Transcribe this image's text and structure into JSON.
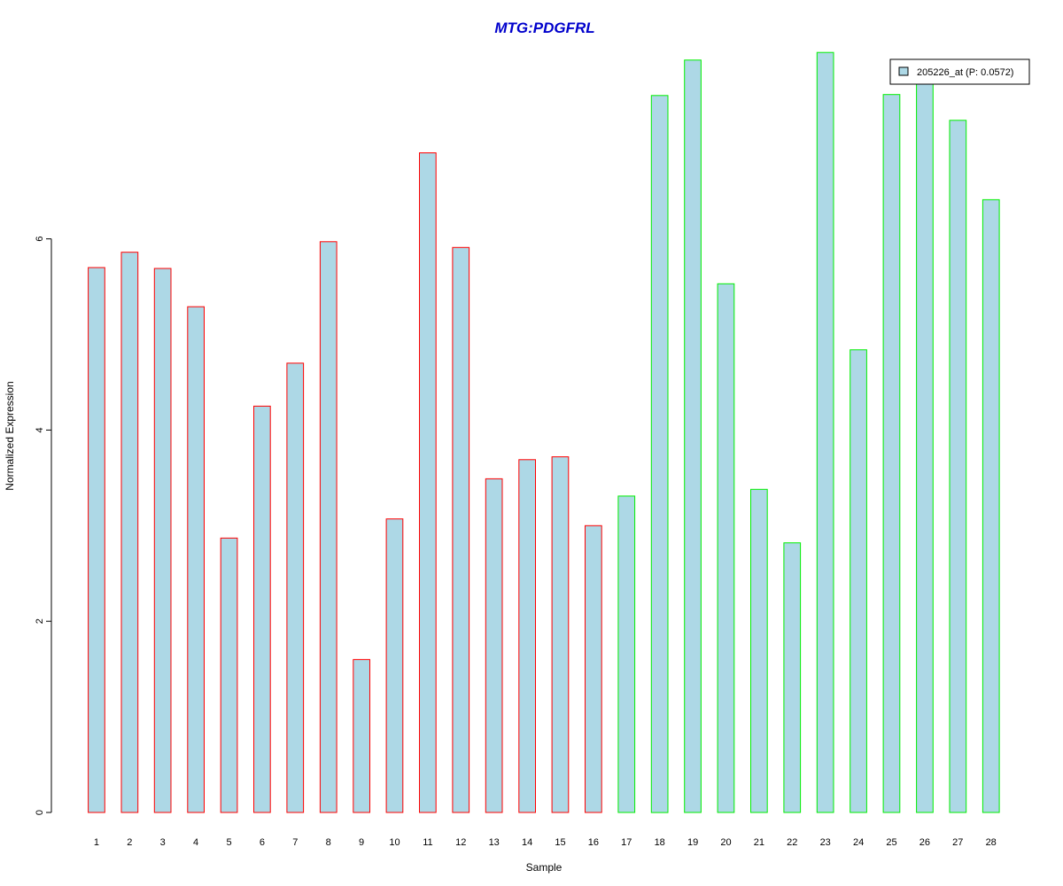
{
  "chart_data": {
    "type": "bar",
    "title": "MTG:PDGFRL",
    "xlabel": "Sample",
    "ylabel": "Normalized Expression",
    "categories": [
      "1",
      "2",
      "3",
      "4",
      "5",
      "6",
      "7",
      "8",
      "9",
      "10",
      "11",
      "12",
      "13",
      "14",
      "15",
      "16",
      "17",
      "18",
      "19",
      "20",
      "21",
      "22",
      "23",
      "24",
      "25",
      "26",
      "27",
      "28"
    ],
    "series": [
      {
        "name": "205226_at (P: 0.0572)",
        "values": [
          5.7,
          5.86,
          5.69,
          5.29,
          2.87,
          4.25,
          4.7,
          5.97,
          1.6,
          3.07,
          6.9,
          5.91,
          3.49,
          3.69,
          3.72,
          3.0,
          3.31,
          7.5,
          7.87,
          5.53,
          3.38,
          2.82,
          7.95,
          4.84,
          7.51,
          7.62,
          7.24,
          6.41
        ]
      }
    ],
    "group_outline_colors": [
      "#ff0000",
      "#ff0000",
      "#ff0000",
      "#ff0000",
      "#ff0000",
      "#ff0000",
      "#ff0000",
      "#ff0000",
      "#ff0000",
      "#ff0000",
      "#ff0000",
      "#ff0000",
      "#ff0000",
      "#ff0000",
      "#ff0000",
      "#ff0000",
      "#00ee00",
      "#00ee00",
      "#00ee00",
      "#00ee00",
      "#00ee00",
      "#00ee00",
      "#00ee00",
      "#00ee00",
      "#00ee00",
      "#00ee00",
      "#00ee00",
      "#00ee00"
    ],
    "bar_fill": "#add8e6",
    "title_color": "#0000cc",
    "ylim": [
      0,
      8
    ],
    "y_ticks": [
      0,
      2,
      4,
      6
    ],
    "grid": false,
    "legend_position": "top-right"
  }
}
